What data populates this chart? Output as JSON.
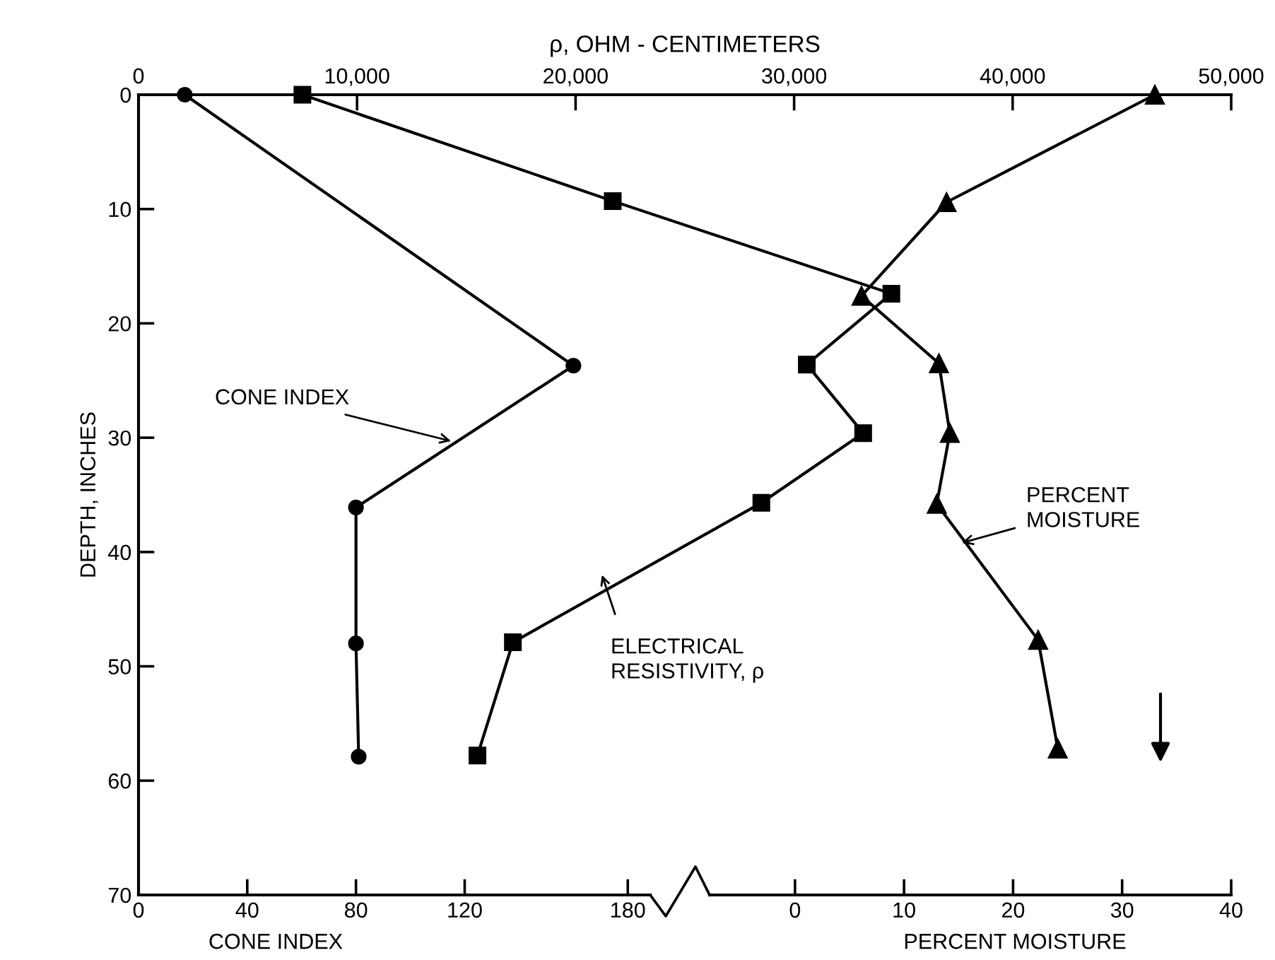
{
  "chart_data": [
    {
      "type": "line",
      "xlabel": "CONE INDEX",
      "x2label": "ρ, OHM - CENTIMETERS",
      "ylabel": "DEPTH, INCHES",
      "ylim": [
        70,
        0
      ],
      "yticks": [
        0,
        10,
        20,
        30,
        40,
        50,
        60,
        70
      ],
      "xlim": [
        0,
        402
      ],
      "xticks": [
        0,
        40,
        80,
        120,
        180
      ],
      "x2lim": [
        0,
        50000
      ],
      "x2ticks": [
        0,
        {
          "value": 10000,
          "label": "10,000"
        },
        {
          "value": 20000,
          "label": "20,000"
        },
        {
          "value": 30000,
          "label": "30,000"
        },
        {
          "value": 40000,
          "label": "40,000"
        },
        {
          "value": 50000,
          "label": "50,000"
        }
      ],
      "series": [
        {
          "marker": "circle",
          "color": "#000000",
          "x": [
            17,
            160,
            80,
            80,
            81
          ],
          "values": [
            0,
            23.7,
            36.1,
            48,
            57.9
          ]
        },
        {
          "axis": "x2",
          "marker": "square",
          "color": "#000000",
          "x": [
            7500,
            21700,
            34450,
            30580,
            33160,
            28500,
            17130,
            15510
          ],
          "values": [
            0,
            9.3,
            17.4,
            23.6,
            29.6,
            35.7,
            47.9,
            57.8
          ]
        }
      ],
      "annotations": [
        {
          "text": "CONE INDEX",
          "x": 115,
          "y": 30.3
        },
        "ELECTRICAL\nRESISTIVITY, ρ"
      ]
    },
    {
      "type": "line",
      "xlabel": "PERCENT MOISTURE",
      "tick_labels": "x",
      "ylim": [
        70,
        0
      ],
      "xlim": [
        -60.2,
        40
      ],
      "xticks": [
        0,
        10,
        20,
        30,
        40
      ],
      "series": [
        {
          "marker": "triangle",
          "color": "#000000",
          "x": [
            33,
            13.9,
            6.1,
            13.2,
            14.2,
            13,
            22.3,
            24.1
          ],
          "values": [
            0,
            9.4,
            17.6,
            23.5,
            29.6,
            35.8,
            47.7,
            57.2
          ]
        }
      ],
      "annotations": [
        {
          "text": "PERCENT\nMOISTURE",
          "x": 15.3,
          "y": 39.2
        }
      ]
    }
  ]
}
